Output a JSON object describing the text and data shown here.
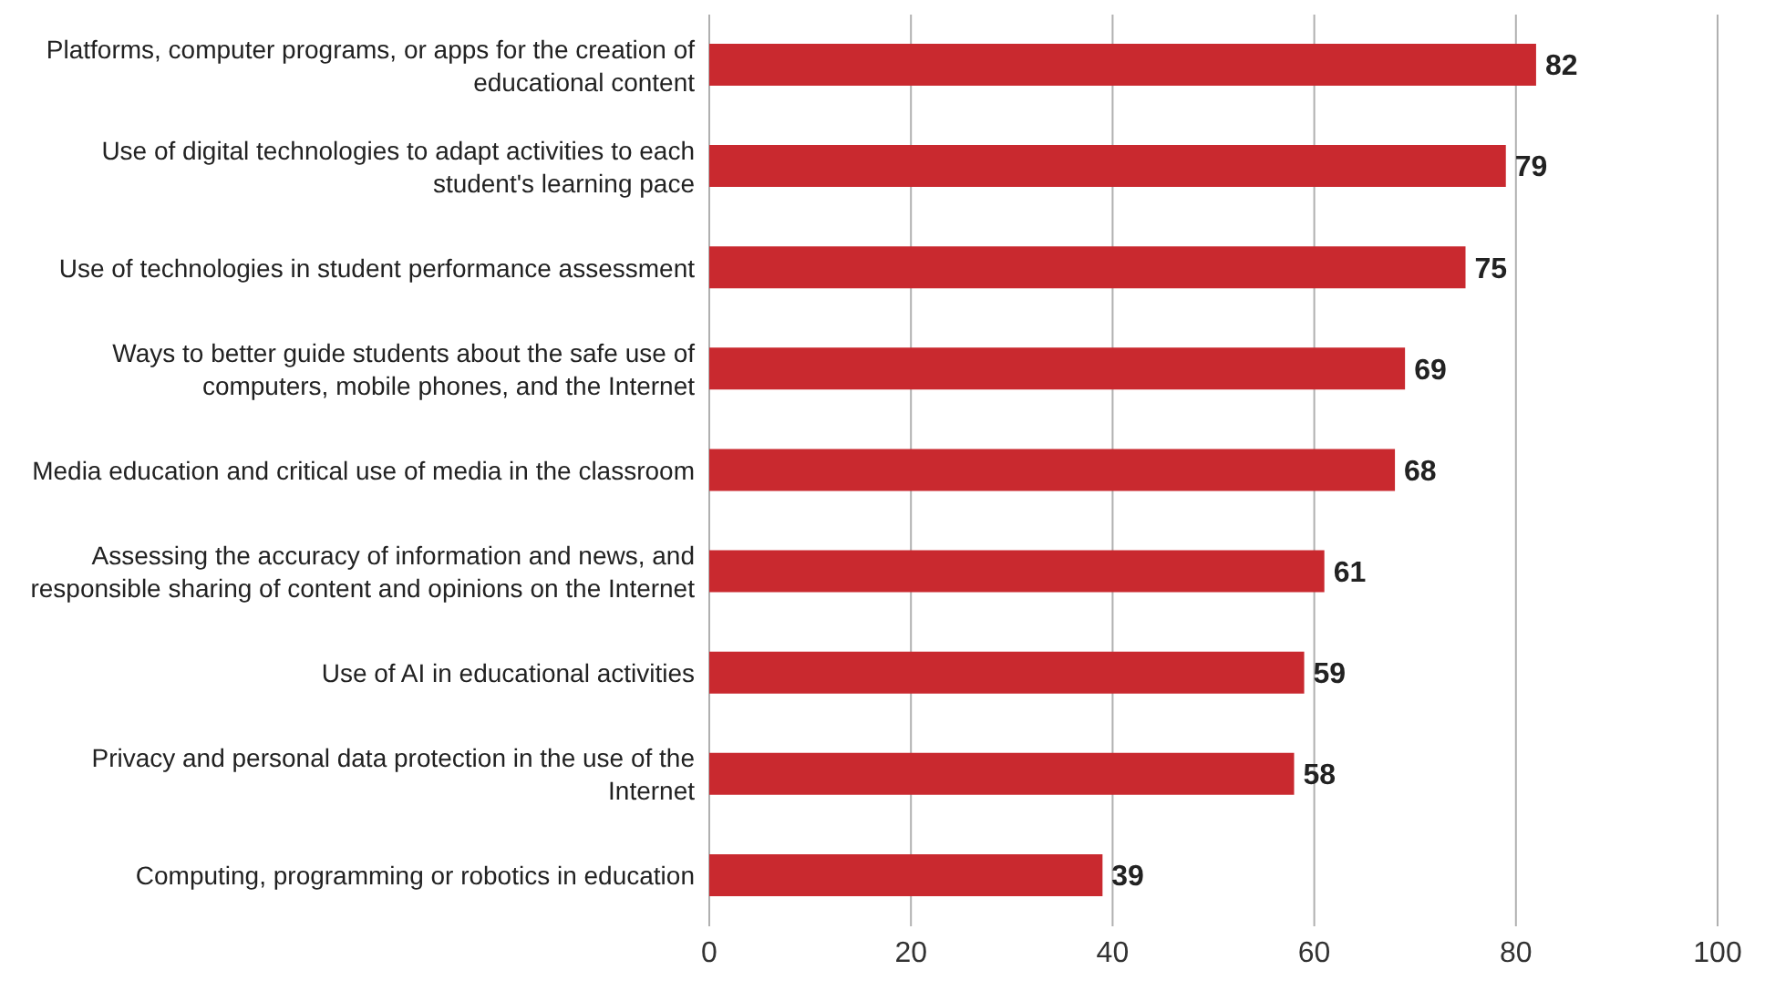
{
  "chart_data": {
    "type": "bar",
    "orientation": "horizontal",
    "categories": [
      "Platforms, computer programs, or apps for the creation of educational content",
      "Use of digital technologies to adapt activities to each student's learning pace",
      "Use of technologies in student performance assessment",
      "Ways to better guide students about the safe use of computers, mobile phones, and the Internet",
      "Media education and critical use of media in the classroom",
      "Assessing the accuracy of information and news, and responsible sharing of content and opinions on the Internet",
      "Use of AI in educational activities",
      "Privacy and personal data protection in the use of the Internet",
      "Computing, programming or robotics in education"
    ],
    "values": [
      82,
      79,
      75,
      69,
      68,
      61,
      59,
      58,
      39
    ],
    "color": "#c9292f",
    "xlim": [
      0,
      100
    ],
    "xticks": [
      0,
      20,
      40,
      60,
      80,
      100
    ],
    "grid": "x",
    "data_labels": true,
    "legend": false
  }
}
